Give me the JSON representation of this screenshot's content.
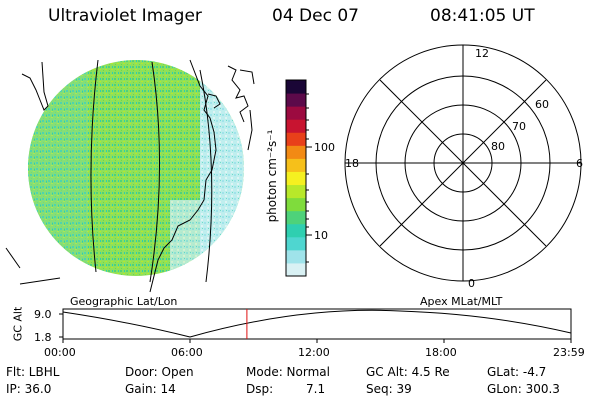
{
  "header": {
    "instrument": "Ultraviolet Imager",
    "date": "04 Dec 07",
    "time": "08:41:05 UT"
  },
  "colorbar": {
    "unit_label": "photon cm⁻²s⁻¹",
    "ticks": [
      "100",
      "10"
    ],
    "colors": [
      "#d9f1f4",
      "#9fe3ea",
      "#4fd6d0",
      "#2fcfb0",
      "#4ed27a",
      "#7fdc3c",
      "#b8e82a",
      "#f5f020",
      "#f6c01a",
      "#f28a14",
      "#e8401a",
      "#c81430",
      "#9c0a40",
      "#5c0a4a",
      "#1a0636"
    ]
  },
  "map_labels": {
    "left": "Geographic Lat/Lon",
    "right": "Apex MLat/MLT"
  },
  "polar_plot": {
    "mlt_labels": {
      "top": "12",
      "left": "18",
      "right": "6",
      "bottom": "0"
    },
    "mlat_labels": [
      "60",
      "70",
      "80"
    ]
  },
  "altitude_plot": {
    "ylabel": "GC Alt",
    "y_ticks": [
      "9.0",
      "1.8"
    ],
    "x_ticks": [
      "00:00",
      "06:00",
      "12:00",
      "18:00",
      "23:59"
    ],
    "current_time_fraction": 0.362
  },
  "status": {
    "row1": {
      "filter": "Flt: LBHL",
      "door": "Door: Open",
      "mode": "Mode: Normal",
      "gc_alt": "GC Alt: 4.5 Re",
      "glat": "GLat:   -4.7"
    },
    "row2": {
      "ip": "IP: 36.0",
      "gain": "Gain: 14",
      "dsp_label": "Dsp:",
      "dsp_value": "7.1",
      "seq": "Seq: 39",
      "glon": "GLon: 300.3"
    }
  }
}
